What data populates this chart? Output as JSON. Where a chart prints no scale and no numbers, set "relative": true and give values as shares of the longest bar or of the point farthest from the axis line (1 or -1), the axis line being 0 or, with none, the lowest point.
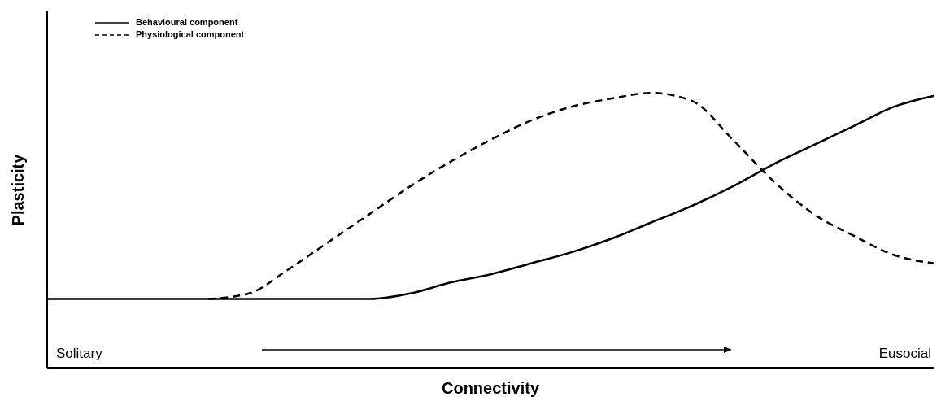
{
  "chart_data": {
    "type": "line",
    "xlabel": "Connectivity",
    "ylabel": "Plasticity",
    "relative": true,
    "legend": "top left",
    "marker": "none",
    "categories": [
      null,
      null,
      null,
      null,
      null,
      null,
      null,
      null,
      null,
      null,
      null,
      null,
      null,
      null,
      null,
      null,
      null,
      null,
      null,
      null,
      null,
      null,
      null
    ],
    "series": [
      {
        "name": "Behavioural component",
        "color": "#000000",
        "line_style": "solid",
        "values": [
          0.25,
          0.25,
          0.25,
          0.25,
          0.25,
          0.25,
          0.25,
          0.25,
          0.25,
          0.27,
          0.31,
          0.34,
          0.38,
          0.42,
          0.47,
          0.53,
          0.59,
          0.66,
          0.74,
          0.81,
          0.88,
          0.95,
          0.99
        ]
      },
      {
        "name": "Physiological component",
        "color": "#000000",
        "line_style": "dashed",
        "values": [
          null,
          null,
          null,
          null,
          0.25,
          0.27,
          0.36,
          0.46,
          0.56,
          0.66,
          0.75,
          0.83,
          0.9,
          0.95,
          0.98,
          1.0,
          0.97,
          0.83,
          0.68,
          0.56,
          0.48,
          0.41,
          0.38
        ]
      }
    ],
    "annotations": [
      "Solitary",
      "Eusocial"
    ]
  }
}
